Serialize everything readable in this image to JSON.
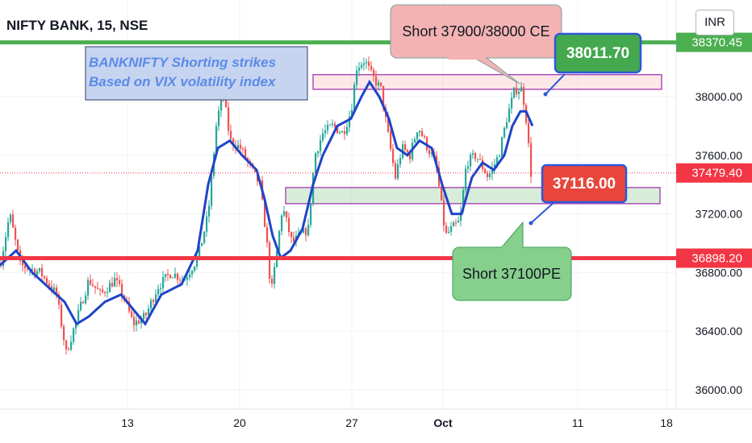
{
  "header": {
    "title": "NIFTY BANK, 15, NSE",
    "currency_button": "INR"
  },
  "colors": {
    "up": "#26a69a",
    "down": "#ef5350",
    "ma": "#1f44c7",
    "green_line": "#4caf50",
    "red_line": "#f23645",
    "last_price": "#f23645"
  },
  "chart_data": {
    "type": "candlestick",
    "title": "NIFTY BANK, 15, NSE",
    "x_ticks": [
      "13",
      "20",
      "27",
      "Oct",
      "11",
      "18"
    ],
    "y_ticks": [
      36000,
      36400,
      36800,
      37200,
      37600,
      38000
    ],
    "ylim": [
      35900,
      38600
    ],
    "price_path": [
      [
        0,
        36850
      ],
      [
        12,
        37200
      ],
      [
        25,
        36850
      ],
      [
        50,
        36800
      ],
      [
        70,
        36650
      ],
      [
        82,
        36250
      ],
      [
        96,
        36500
      ],
      [
        110,
        36750
      ],
      [
        125,
        36650
      ],
      [
        142,
        36750
      ],
      [
        152,
        36650
      ],
      [
        165,
        36450
      ],
      [
        180,
        36500
      ],
      [
        195,
        36700
      ],
      [
        212,
        36800
      ],
      [
        228,
        36750
      ],
      [
        245,
        36900
      ],
      [
        258,
        37200
      ],
      [
        268,
        37800
      ],
      [
        276,
        38050
      ],
      [
        285,
        37700
      ],
      [
        298,
        37650
      ],
      [
        312,
        37500
      ],
      [
        322,
        37400
      ],
      [
        330,
        37050
      ],
      [
        336,
        36650
      ],
      [
        342,
        36900
      ],
      [
        350,
        37250
      ],
      [
        362,
        37000
      ],
      [
        372,
        37050
      ],
      [
        382,
        37100
      ],
      [
        390,
        37600
      ],
      [
        400,
        37750
      ],
      [
        412,
        37800
      ],
      [
        425,
        37750
      ],
      [
        435,
        37900
      ],
      [
        442,
        38200
      ],
      [
        452,
        38250
      ],
      [
        460,
        38150
      ],
      [
        472,
        38050
      ],
      [
        482,
        37700
      ],
      [
        490,
        37450
      ],
      [
        498,
        37650
      ],
      [
        508,
        37600
      ],
      [
        518,
        37800
      ],
      [
        530,
        37650
      ],
      [
        540,
        37550
      ],
      [
        546,
        37300
      ],
      [
        552,
        37050
      ],
      [
        560,
        37100
      ],
      [
        570,
        37150
      ],
      [
        578,
        37550
      ],
      [
        590,
        37600
      ],
      [
        605,
        37450
      ],
      [
        618,
        37600
      ],
      [
        628,
        37850
      ],
      [
        638,
        38050
      ],
      [
        647,
        38050
      ],
      [
        652,
        37850
      ],
      [
        658,
        37479
      ]
    ],
    "moving_average": [
      [
        0,
        36850
      ],
      [
        20,
        36950
      ],
      [
        40,
        36800
      ],
      [
        60,
        36700
      ],
      [
        80,
        36600
      ],
      [
        95,
        36450
      ],
      [
        110,
        36500
      ],
      [
        130,
        36600
      ],
      [
        150,
        36650
      ],
      [
        165,
        36550
      ],
      [
        180,
        36450
      ],
      [
        200,
        36650
      ],
      [
        225,
        36720
      ],
      [
        245,
        36950
      ],
      [
        258,
        37400
      ],
      [
        270,
        37650
      ],
      [
        285,
        37700
      ],
      [
        300,
        37600
      ],
      [
        318,
        37500
      ],
      [
        328,
        37300
      ],
      [
        338,
        37050
      ],
      [
        348,
        36900
      ],
      [
        360,
        36950
      ],
      [
        375,
        37100
      ],
      [
        388,
        37400
      ],
      [
        400,
        37600
      ],
      [
        418,
        37800
      ],
      [
        435,
        37850
      ],
      [
        448,
        38000
      ],
      [
        458,
        38100
      ],
      [
        470,
        38000
      ],
      [
        482,
        37850
      ],
      [
        492,
        37650
      ],
      [
        505,
        37600
      ],
      [
        520,
        37700
      ],
      [
        535,
        37650
      ],
      [
        548,
        37400
      ],
      [
        560,
        37200
      ],
      [
        572,
        37200
      ],
      [
        585,
        37450
      ],
      [
        598,
        37550
      ],
      [
        612,
        37500
      ],
      [
        625,
        37600
      ],
      [
        635,
        37800
      ],
      [
        645,
        37900
      ],
      [
        652,
        37900
      ],
      [
        660,
        37800
      ]
    ],
    "horizontal_levels": [
      {
        "price": 38370.45,
        "label": "38370.45",
        "style": "green"
      },
      {
        "price": 36898.2,
        "label": "36898.20",
        "style": "red"
      }
    ],
    "last_price": {
      "price": 37479.4,
      "label": "37479.40"
    },
    "zones": [
      {
        "from": 38050,
        "to": 38150,
        "kind": "resistance"
      },
      {
        "from": 37270,
        "to": 37380,
        "kind": "support"
      }
    ],
    "annotations": {
      "note": [
        "BANKNIFTY Shorting strikes",
        "Based on VIX volatility index"
      ],
      "callout_ce": "Short 37900/38000 CE",
      "callout_pe": "Short 37100PE",
      "price_up": "38011.70",
      "price_down": "37116.00"
    }
  }
}
